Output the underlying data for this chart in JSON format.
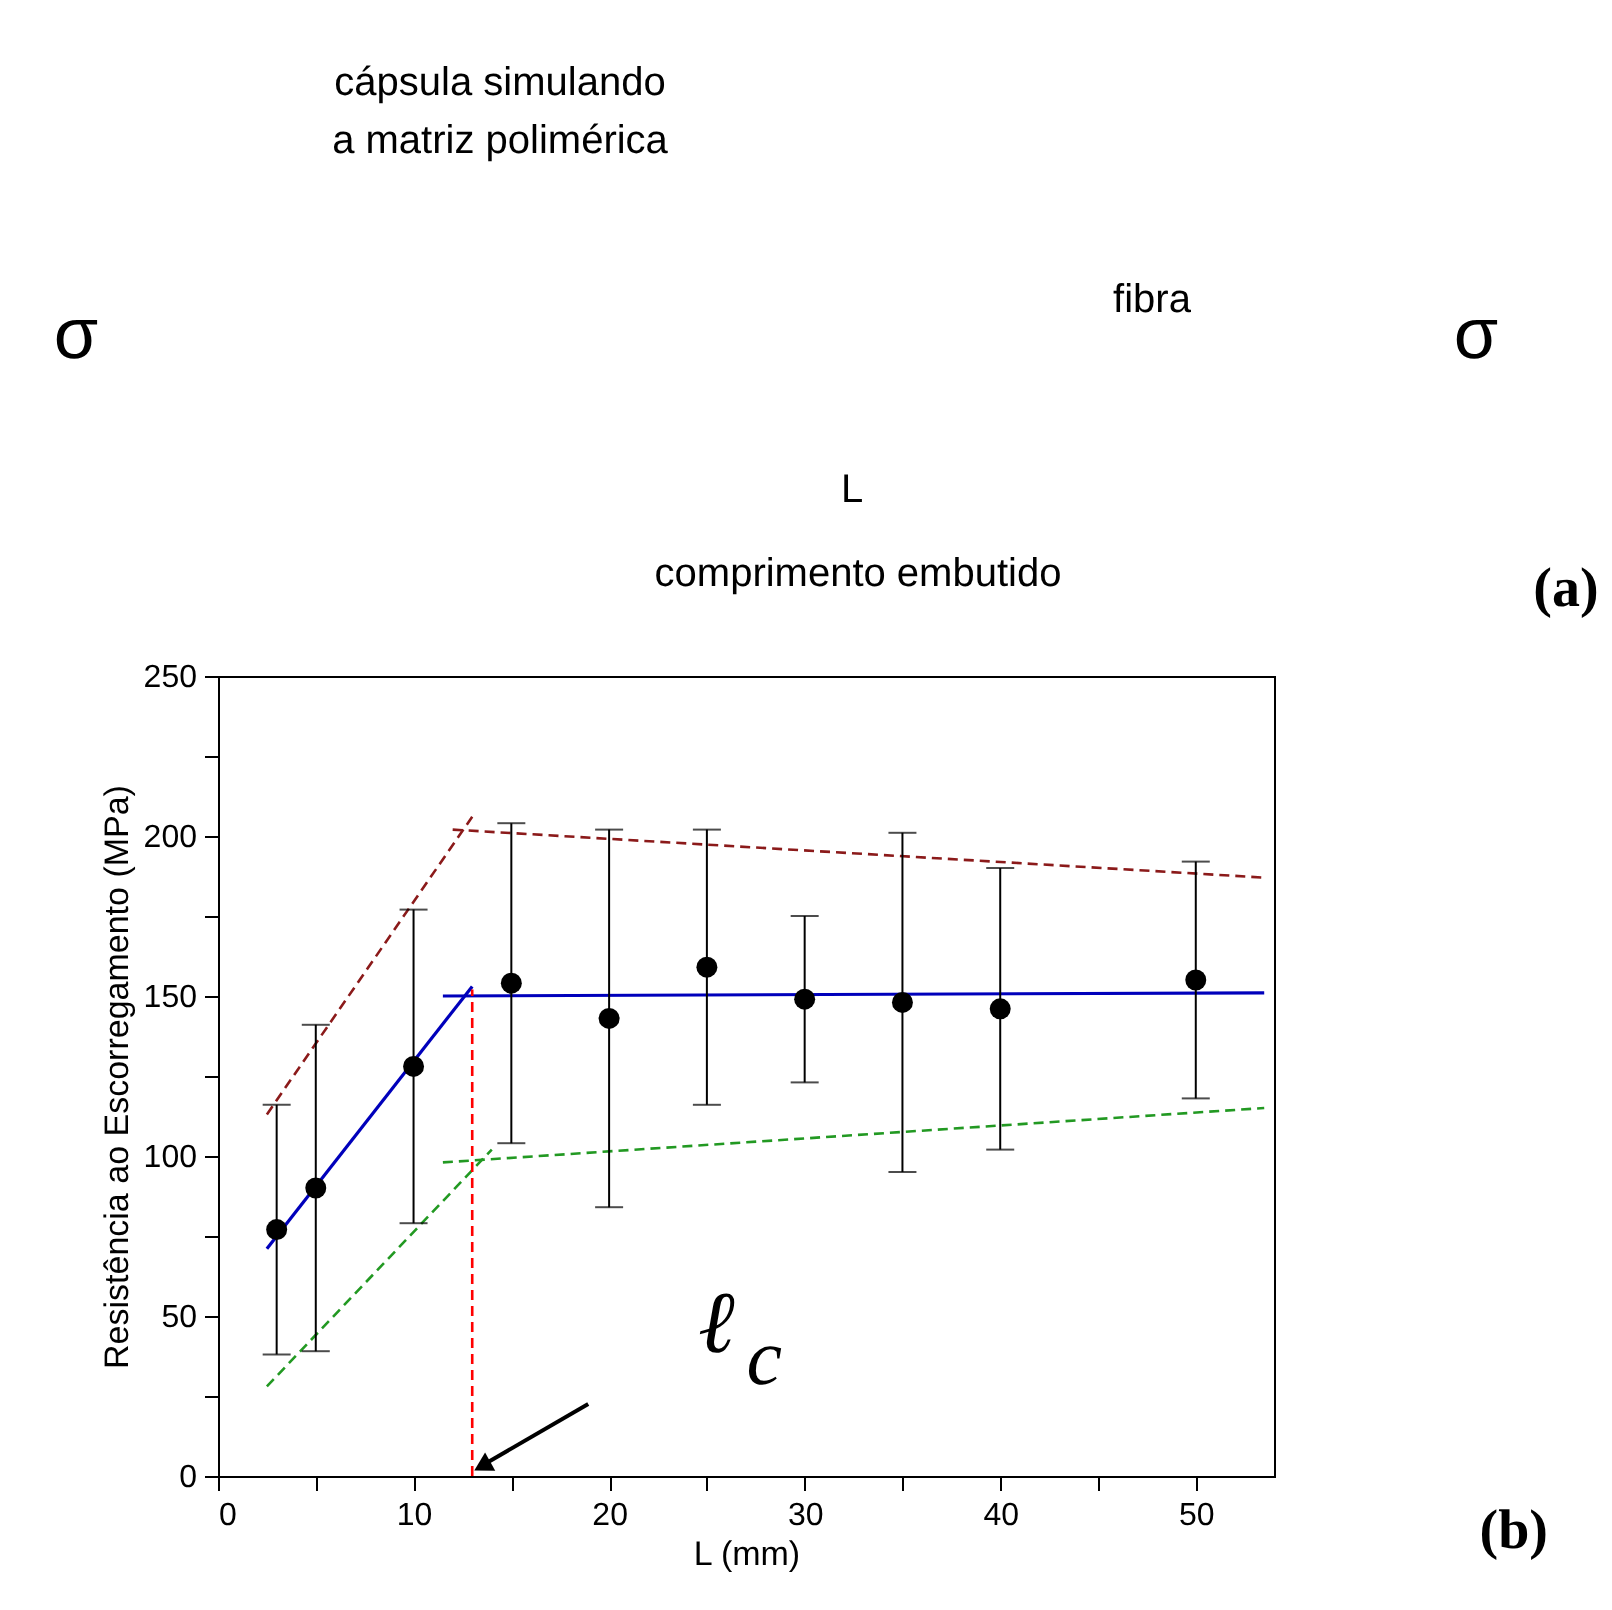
{
  "chart_data": [
    {
      "type": "other",
      "annotations": [
        "cápsula simulando a matriz polimérica",
        "fibra",
        "σ",
        "σ",
        "L",
        "comprimento embutido",
        "(a)"
      ]
    },
    {
      "type": "scatter",
      "xlabel": "L (mm)",
      "ylabel": "Resistência ao Escorregamento (MPa)",
      "xlim": [
        0,
        54
      ],
      "ylim": [
        0,
        250
      ],
      "xticks": [
        0,
        {
          "value": 5,
          "label": null
        },
        10,
        {
          "value": 15,
          "label": null
        },
        20,
        {
          "value": 25,
          "label": null
        },
        30,
        {
          "value": 35,
          "label": null
        },
        40,
        {
          "value": 45,
          "label": null
        },
        50
      ],
      "yticks": [
        0,
        {
          "value": 25,
          "label": null
        },
        50,
        {
          "value": 75,
          "label": null
        },
        100,
        {
          "value": 125,
          "label": null
        },
        150,
        {
          "value": 175,
          "label": null
        },
        200,
        {
          "value": 225,
          "label": null
        },
        250
      ],
      "grid": false,
      "series": [
        {
          "type": "line",
          "color": "#8b1a1a",
          "line_style": "dashed",
          "x": [
            2.5,
            13
          ],
          "values": [
            113,
            206
          ]
        },
        {
          "type": "line",
          "color": "#8b1a1a",
          "line_style": "dashed",
          "x": [
            12,
            53.5
          ],
          "values": [
            202,
            187
          ]
        },
        {
          "type": "line",
          "color": "#229922",
          "line_style": "dashed",
          "x": [
            2.5,
            14
          ],
          "values": [
            28,
            102
          ]
        },
        {
          "type": "line",
          "color": "#229922",
          "line_style": "dashed",
          "x": [
            11.5,
            53.5
          ],
          "values": [
            98,
            115
          ]
        },
        {
          "type": "line",
          "color": "#0000bb",
          "line_style": "solid",
          "x": [
            2.5,
            13
          ],
          "values": [
            71,
            153
          ]
        },
        {
          "type": "line",
          "color": "#0000bb",
          "line_style": "solid",
          "x": [
            11.5,
            53.5
          ],
          "values": [
            150,
            151
          ]
        },
        {
          "type": "line",
          "color": "#ff0000",
          "line_style": "dashed",
          "x": [
            13,
            13
          ],
          "values": [
            0,
            152
          ]
        },
        {
          "type": "scatter",
          "color": "#000000",
          "marker": "circle",
          "x": [
            3,
            5,
            10,
            15,
            20,
            25,
            30,
            35,
            40,
            50
          ],
          "values": [
            77,
            90,
            128,
            154,
            143,
            159,
            149,
            148,
            146,
            155
          ],
          "errors": [
            [
              38,
              116
            ],
            [
              39,
              141
            ],
            [
              79,
              177
            ],
            [
              104,
              204
            ],
            [
              84,
              202
            ],
            [
              116,
              202
            ],
            [
              123,
              175
            ],
            [
              95,
              201
            ],
            [
              102,
              190
            ],
            [
              118,
              192
            ]
          ]
        }
      ],
      "annotations": [
        {
          "text": "ℓ$_{c}$",
          "x": 13,
          "y": 0
        },
        "(b)"
      ]
    }
  ]
}
